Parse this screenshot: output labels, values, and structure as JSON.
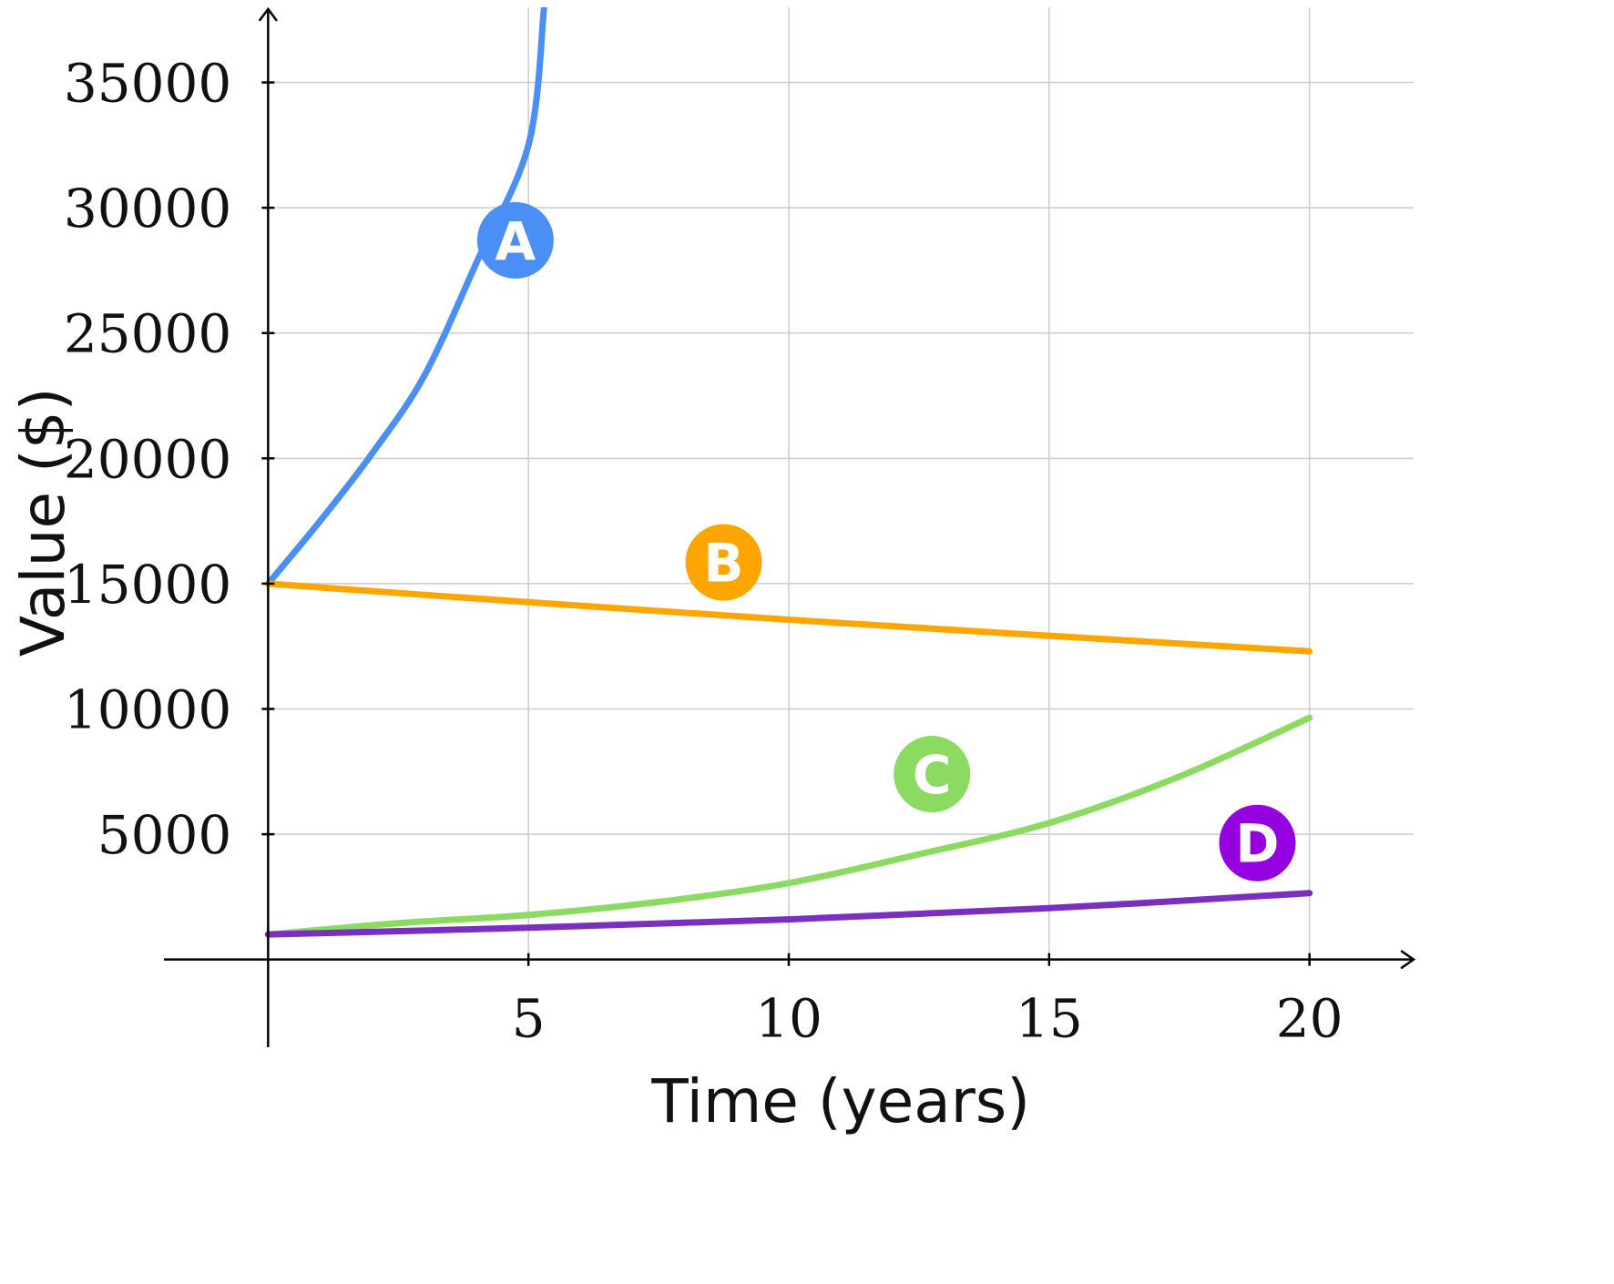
{
  "chart_data": {
    "type": "line",
    "xlabel": "Time (years)",
    "ylabel": "Value ($)",
    "xlim": [
      -2,
      22
    ],
    "ylim": [
      -3500,
      38000
    ],
    "x_ticks": [
      5,
      10,
      15,
      20
    ],
    "x_tick_labels": [
      "5",
      "10",
      "15",
      "20"
    ],
    "y_ticks": [
      5000,
      10000,
      15000,
      20000,
      25000,
      30000,
      35000
    ],
    "y_tick_labels": [
      "5000",
      "10000",
      "15000",
      "20000",
      "25000",
      "30000",
      "35000"
    ],
    "grid": true,
    "series": [
      {
        "name": "A",
        "label": "A",
        "color": "#4A8FF5",
        "points": [
          [
            0,
            15000
          ],
          [
            1,
            17500
          ],
          [
            2,
            20200
          ],
          [
            3,
            23300
          ],
          [
            4,
            27800
          ],
          [
            5,
            32500
          ],
          [
            5.3,
            38000
          ]
        ],
        "label_at": [
          4.75,
          28700
        ]
      },
      {
        "name": "B",
        "label": "B",
        "color": "#FFA500",
        "points": [
          [
            0,
            15000
          ],
          [
            5,
            14260
          ],
          [
            10,
            13560
          ],
          [
            15,
            12920
          ],
          [
            20,
            12300
          ]
        ],
        "label_at": [
          8.75,
          15850
        ]
      },
      {
        "name": "C",
        "label": "C",
        "color": "#8BDB63",
        "points": [
          [
            0,
            1000
          ],
          [
            2.5,
            1450
          ],
          [
            5,
            1780
          ],
          [
            7.5,
            2300
          ],
          [
            10,
            3050
          ],
          [
            12.5,
            4200
          ],
          [
            15,
            5450
          ],
          [
            17.5,
            7300
          ],
          [
            20,
            9650
          ]
        ],
        "label_at": [
          12.75,
          7400
        ]
      },
      {
        "name": "D",
        "label": "D",
        "color": "#7B2FC0",
        "badge_color": "#9400E0",
        "points": [
          [
            0,
            1000
          ],
          [
            5,
            1270
          ],
          [
            10,
            1600
          ],
          [
            15,
            2050
          ],
          [
            20,
            2650
          ]
        ],
        "label_at": [
          19,
          4650
        ]
      }
    ]
  }
}
